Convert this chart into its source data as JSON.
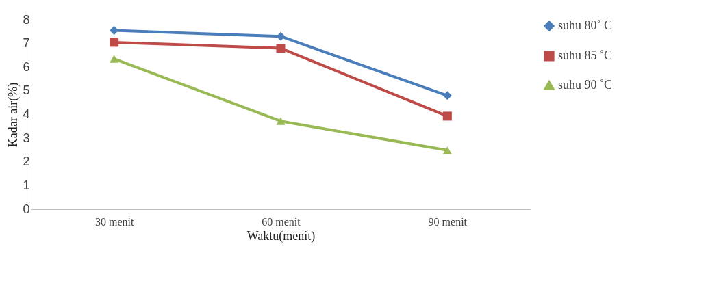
{
  "chart_data": {
    "type": "line",
    "xlabel": "Waktu(menit)",
    "ylabel": "Kadar air(%)",
    "categories": [
      "30 menit",
      "60 menit",
      "90 menit"
    ],
    "series": [
      {
        "name": "suhu 80˚ C",
        "color": "#4a7ebb",
        "marker": "diamond",
        "values": [
          7.55,
          7.3,
          4.8
        ]
      },
      {
        "name": "suhu 85 ˚C",
        "color": "#be4b48",
        "marker": "square",
        "values": [
          7.05,
          6.8,
          3.93
        ]
      },
      {
        "name": "suhu 90 ˚C",
        "color": "#98b954",
        "marker": "triangle",
        "values": [
          6.35,
          3.72,
          2.49
        ]
      }
    ],
    "ylim": [
      0,
      8
    ],
    "yticks": [
      0,
      1,
      2,
      3,
      4,
      5,
      6,
      7,
      8
    ],
    "grid": false,
    "legend": "right",
    "line_style": "solid"
  }
}
